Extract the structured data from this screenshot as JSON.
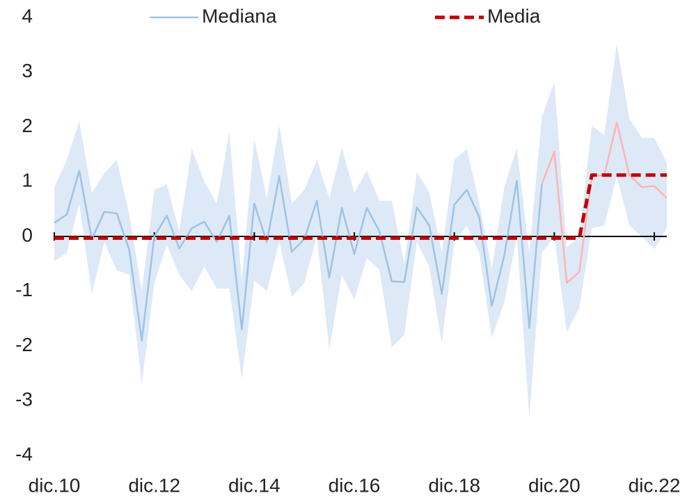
{
  "chart_data": {
    "type": "line",
    "categories": [
      "dic.10",
      null,
      null,
      null,
      null,
      null,
      null,
      null,
      "dic.12",
      null,
      null,
      null,
      null,
      null,
      null,
      null,
      "dic.14",
      null,
      null,
      null,
      null,
      null,
      null,
      null,
      "dic.16",
      null,
      null,
      null,
      null,
      null,
      null,
      null,
      "dic.18",
      null,
      null,
      null,
      null,
      null,
      null,
      null,
      "dic.20",
      null,
      null,
      null,
      null,
      null,
      null,
      null,
      "dic.22",
      null
    ],
    "band": {
      "color": "#dde9f6",
      "upper": [
        0.9,
        1.4,
        2.1,
        0.8,
        1.15,
        1.4,
        0.4,
        -1.0,
        0.85,
        0.95,
        0.1,
        1.6,
        1.0,
        0.6,
        1.9,
        -0.8,
        1.78,
        0.7,
        2.03,
        0.6,
        0.85,
        1.4,
        0.7,
        1.62,
        0.8,
        1.2,
        0.65,
        0.65,
        -0.5,
        1.18,
        0.8,
        -0.3,
        1.4,
        1.6,
        0.6,
        -0.6,
        0.9,
        1.62,
        -0.3,
        2.18,
        2.82,
        -0.2,
        0.0,
        2.02,
        1.85,
        3.52,
        2.15,
        1.8,
        1.8,
        1.35
      ],
      "lower": [
        -0.45,
        -0.3,
        0.6,
        -1.05,
        -0.1,
        -0.62,
        -0.7,
        -2.7,
        -0.85,
        -0.15,
        -0.7,
        -1.0,
        -0.55,
        -0.95,
        -0.95,
        -2.6,
        -0.8,
        -1.0,
        -0.1,
        -1.1,
        -0.85,
        0.0,
        -2.07,
        -0.7,
        -1.15,
        -0.4,
        -0.6,
        -2.02,
        -1.8,
        -0.1,
        -0.55,
        -1.95,
        -0.1,
        0.2,
        -0.3,
        -1.85,
        -1.2,
        0.0,
        -3.3,
        -0.3,
        0.0,
        -1.75,
        -1.3,
        0.15,
        0.2,
        1.1,
        0.2,
        0.0,
        -0.23,
        0.15
      ]
    },
    "series": [
      {
        "name": "Mediana",
        "color": "#9dc3e6",
        "width": 2.5,
        "dash": false,
        "values": [
          0.25,
          0.4,
          1.2,
          -0.05,
          0.45,
          0.42,
          -0.25,
          -1.9,
          0.0,
          0.38,
          -0.22,
          0.15,
          0.27,
          -0.1,
          0.38,
          -1.7,
          0.6,
          -0.1,
          1.1,
          -0.28,
          -0.05,
          0.65,
          -0.75,
          0.52,
          -0.32,
          0.52,
          0.1,
          -0.82,
          -0.83,
          0.53,
          0.2,
          -1.05,
          0.58,
          0.85,
          0.35,
          -1.27,
          -0.35,
          1.02,
          -1.67,
          0.95,
          null,
          null,
          null,
          null,
          null,
          null,
          null,
          null,
          null,
          null
        ]
      },
      {
        "color": "#ffb3b3",
        "width": 2.5,
        "dash": false,
        "values": [
          null,
          null,
          null,
          null,
          null,
          null,
          null,
          null,
          null,
          null,
          null,
          null,
          null,
          null,
          null,
          null,
          null,
          null,
          null,
          null,
          null,
          null,
          null,
          null,
          null,
          null,
          null,
          null,
          null,
          null,
          null,
          null,
          null,
          null,
          null,
          null,
          null,
          null,
          null,
          0.95,
          1.55,
          -0.85,
          -0.65,
          1.1,
          1.12,
          2.08,
          1.12,
          0.9,
          0.92,
          0.7
        ]
      },
      {
        "name": "Media",
        "color": "#c00000",
        "width": 5,
        "dash": true,
        "values": [
          -0.03,
          -0.03,
          -0.03,
          -0.03,
          -0.03,
          -0.03,
          -0.03,
          -0.03,
          -0.03,
          -0.03,
          -0.03,
          -0.03,
          -0.03,
          -0.03,
          -0.03,
          -0.03,
          -0.03,
          -0.03,
          -0.03,
          -0.03,
          -0.03,
          -0.03,
          -0.03,
          -0.03,
          -0.03,
          -0.03,
          -0.03,
          -0.03,
          -0.03,
          -0.03,
          -0.03,
          -0.03,
          -0.03,
          -0.03,
          -0.03,
          -0.03,
          -0.03,
          -0.03,
          -0.03,
          -0.03,
          -0.03,
          -0.03,
          -0.03,
          1.12,
          1.12,
          1.12,
          1.12,
          1.12,
          1.12,
          1.12
        ]
      }
    ],
    "ylim": [
      -4,
      4
    ],
    "yticks": [
      -4,
      -3,
      -2,
      -1,
      0,
      1,
      2,
      3,
      4
    ],
    "legend": "top"
  }
}
